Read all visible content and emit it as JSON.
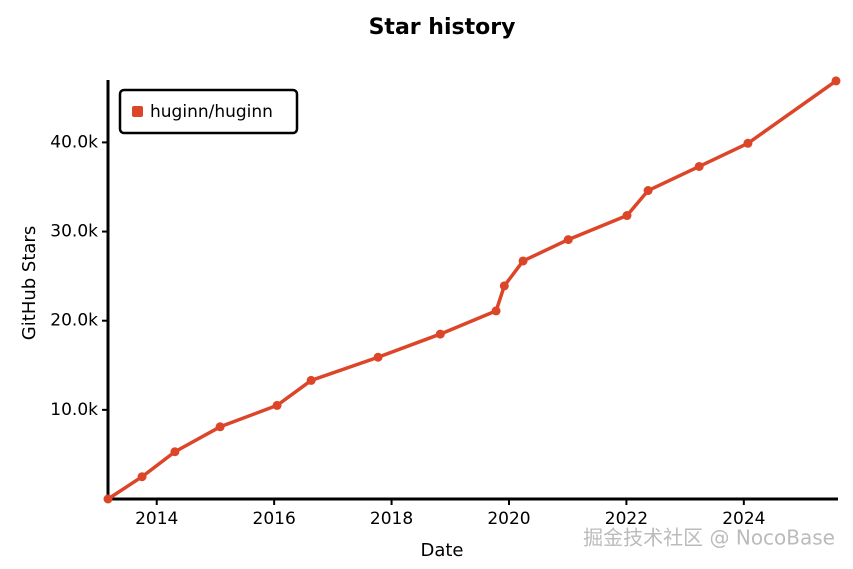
{
  "chart_data": {
    "type": "line",
    "title": "Star history",
    "xlabel": "Date",
    "ylabel": "GitHub Stars",
    "x": [
      2013.17,
      2013.75,
      2014.31,
      2015.08,
      2016.05,
      2016.63,
      2017.77,
      2018.83,
      2019.78,
      2019.92,
      2020.24,
      2021.01,
      2022.01,
      2022.37,
      2023.24,
      2024.07,
      2025.57
    ],
    "series": [
      {
        "name": "huginn/huginn",
        "color": "#dd4528",
        "values": [
          0,
          2500,
          5300,
          8100,
          10500,
          13300,
          15900,
          18500,
          21100,
          23900,
          26700,
          29100,
          31800,
          34600,
          37300,
          39900,
          46900
        ]
      }
    ],
    "xlim": [
      2013.17,
      2025.57
    ],
    "xticks": [
      2014,
      2016,
      2018,
      2020,
      2022,
      2024
    ],
    "ylim": [
      0,
      47000
    ],
    "yticks": [
      {
        "value": 10000,
        "label": "10.0k"
      },
      {
        "value": 20000,
        "label": "20.0k"
      },
      {
        "value": 30000,
        "label": "30.0k"
      },
      {
        "value": 40000,
        "label": "40.0k"
      }
    ],
    "legend": "upper left",
    "watermark": "掘金技术社区 @ NocoBase"
  }
}
